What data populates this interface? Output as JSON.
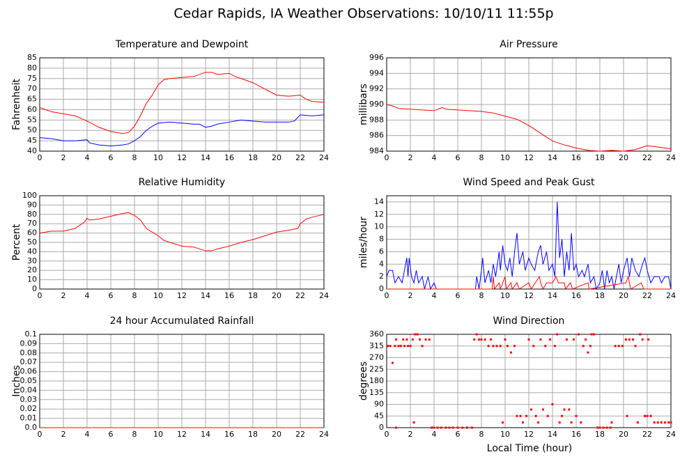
{
  "title": "Cedar Rapids, IA Weather Observations: 10/10/11 11:55p",
  "xlabel": "Local Time (hour)",
  "chart_data": [
    {
      "type": "line",
      "title": "Temperature and Dewpoint",
      "ylabel": "Fahrenheit",
      "grid": true,
      "xlim": [
        0,
        24
      ],
      "xticks": [
        0,
        2,
        4,
        6,
        8,
        10,
        12,
        14,
        16,
        18,
        20,
        22,
        24
      ],
      "ylim": [
        40,
        85
      ],
      "yticks": [
        40,
        45,
        50,
        55,
        60,
        65,
        70,
        75,
        80,
        85
      ],
      "series": [
        {
          "color": "#ff0000",
          "x": [
            0,
            1,
            2,
            3,
            4,
            5,
            6,
            7,
            7.5,
            8,
            8.5,
            9,
            9.5,
            10,
            10.5,
            11,
            12,
            13,
            14,
            14.5,
            15,
            16,
            16.5,
            17,
            18,
            19,
            20,
            21,
            22,
            22.5,
            23,
            24
          ],
          "values": [
            61,
            59,
            58,
            57,
            54.5,
            51.5,
            49.5,
            48.5,
            49,
            52,
            57,
            63,
            67,
            72,
            74.5,
            75,
            75.5,
            76,
            78,
            78,
            77,
            77.5,
            76,
            75,
            73,
            70,
            67,
            66.5,
            67,
            65,
            64,
            63.5
          ]
        },
        {
          "color": "#0000ff",
          "x": [
            0,
            1,
            2,
            3,
            4,
            4.2,
            5,
            6,
            7,
            7.5,
            8,
            8.5,
            9,
            9.5,
            10,
            11,
            12,
            13,
            13.5,
            14,
            14.5,
            15,
            16,
            17,
            18,
            19,
            20,
            21,
            21.5,
            22,
            23,
            24
          ],
          "values": [
            46.5,
            46,
            45,
            45,
            45.5,
            44,
            43,
            42.5,
            43,
            43.5,
            45,
            47,
            50,
            52,
            53.5,
            54,
            53.5,
            53,
            53,
            51.5,
            52,
            53,
            54,
            55,
            54.5,
            54,
            54,
            54,
            54.5,
            57.5,
            57,
            57.5
          ]
        }
      ]
    },
    {
      "type": "line",
      "title": "Air Pressure",
      "ylabel": "millibars",
      "grid": true,
      "xlim": [
        0,
        24
      ],
      "xticks": [
        0,
        2,
        4,
        6,
        8,
        10,
        12,
        14,
        16,
        18,
        20,
        22,
        24
      ],
      "ylim": [
        984,
        996
      ],
      "yticks": [
        984,
        986,
        988,
        990,
        992,
        994,
        996
      ],
      "series": [
        {
          "color": "#ff0000",
          "x": [
            0,
            0.5,
            1,
            2,
            3,
            4,
            4.7,
            5,
            6,
            7,
            8,
            9,
            10,
            11,
            12,
            13,
            14,
            15,
            16,
            17,
            18,
            19,
            20,
            21,
            22,
            23,
            24
          ],
          "values": [
            990,
            989.8,
            989.5,
            989.4,
            989.3,
            989.2,
            989.6,
            989.4,
            989.3,
            989.2,
            989.1,
            988.9,
            988.5,
            988.1,
            987.3,
            986.3,
            985.3,
            984.8,
            984.4,
            984.1,
            984,
            984.1,
            984,
            984.2,
            984.7,
            984.5,
            984.3
          ]
        }
      ]
    },
    {
      "type": "line",
      "title": "Relative Humidity",
      "ylabel": "Percent",
      "grid": true,
      "xlim": [
        0,
        24
      ],
      "xticks": [
        0,
        2,
        4,
        6,
        8,
        10,
        12,
        14,
        16,
        18,
        20,
        22,
        24
      ],
      "ylim": [
        0,
        100
      ],
      "yticks": [
        0,
        10,
        20,
        30,
        40,
        50,
        60,
        70,
        80,
        90,
        100
      ],
      "series": [
        {
          "color": "#ff0000",
          "x": [
            0,
            1,
            2,
            3,
            3.8,
            4,
            4.2,
            5,
            6,
            7,
            7.5,
            8,
            8.5,
            9,
            10,
            10.5,
            11,
            12,
            13,
            14,
            14.5,
            15,
            16,
            17,
            18,
            19,
            20,
            21,
            21.8,
            22,
            22.5,
            23,
            24
          ],
          "values": [
            60,
            62,
            62,
            65,
            72,
            76,
            74,
            75,
            78,
            81,
            82,
            79,
            74,
            65,
            57,
            52,
            50,
            46,
            45,
            41,
            41,
            43,
            46,
            50,
            53,
            57,
            61,
            63,
            65,
            70,
            75,
            77,
            80
          ]
        }
      ]
    },
    {
      "type": "line",
      "title": "Wind Speed and Peak Gust",
      "ylabel": "miles/hour",
      "grid": true,
      "xlim": [
        0,
        24
      ],
      "xticks": [
        0,
        2,
        4,
        6,
        8,
        10,
        12,
        14,
        16,
        18,
        20,
        22,
        24
      ],
      "ylim": [
        0,
        15
      ],
      "yticks": [
        0,
        2,
        4,
        6,
        8,
        10,
        12,
        14
      ],
      "series": [
        {
          "color": "#0000ff",
          "x": [
            0,
            0.2,
            0.5,
            0.7,
            1,
            1.3,
            1.6,
            1.7,
            1.8,
            1.9,
            2.1,
            2.3,
            2.5,
            2.7,
            3,
            3.2,
            3.5,
            3.7,
            4,
            4.2,
            7.5,
            7.6,
            7.8,
            8,
            8.1,
            8.3,
            8.6,
            8.8,
            9,
            9.2,
            9.5,
            9.6,
            9.8,
            10,
            10.2,
            10.4,
            10.6,
            10.8,
            11,
            11.2,
            11.5,
            11.7,
            12,
            12.2,
            12.5,
            12.8,
            13,
            13.2,
            13.5,
            13.7,
            14,
            14.2,
            14.4,
            14.6,
            14.8,
            15,
            15.2,
            15.4,
            15.6,
            15.8,
            16,
            16.2,
            16.5,
            16.7,
            17,
            17.2,
            17.5,
            17.7,
            18,
            18.2,
            18.4,
            18.6,
            18.8,
            19,
            19.2,
            19.6,
            19.8,
            20,
            20.3,
            20.5,
            20.7,
            21,
            21.3,
            21.6,
            21.8,
            22,
            22.3,
            22.6,
            23,
            23.2,
            23.5,
            23.8,
            24
          ],
          "values": [
            2,
            3,
            3,
            1,
            2,
            1,
            4,
            5,
            2,
            5,
            2,
            1,
            3,
            1,
            2,
            0,
            2,
            0,
            1,
            0,
            0,
            2,
            0,
            3,
            5,
            1,
            3,
            1,
            4,
            2,
            6,
            3,
            7,
            4,
            3,
            5,
            2,
            6,
            9,
            4,
            6,
            3,
            5,
            4,
            3,
            6,
            7,
            4,
            6,
            3,
            4,
            2,
            14,
            5,
            8,
            2,
            6,
            3,
            9,
            3,
            4,
            2,
            3,
            2,
            4,
            1,
            2,
            0,
            1,
            3,
            0,
            3,
            1,
            2,
            0,
            4,
            1,
            3,
            5,
            2,
            5,
            3,
            2,
            4,
            5,
            3,
            1,
            2,
            2,
            1,
            2,
            2,
            0
          ]
        },
        {
          "color": "#ff0000",
          "x": [
            0,
            8.9,
            9,
            9.1,
            9.5,
            9.6,
            10,
            10.1,
            10.5,
            10.6,
            11,
            11.2,
            12,
            12.2,
            12.9,
            13,
            13.2,
            13.5,
            14,
            14.3,
            14.5,
            15,
            15.1,
            15.5,
            15.7,
            17,
            17.1,
            20.2,
            20.4,
            20.6,
            21.5,
            21.7,
            24
          ],
          "values": [
            0,
            0,
            2,
            0,
            1,
            0,
            2,
            0,
            1,
            0,
            1,
            0,
            1,
            0,
            2,
            1,
            0,
            1,
            1,
            2,
            1,
            1,
            0,
            1,
            0,
            1,
            0,
            1,
            2,
            0,
            1,
            0,
            0
          ]
        }
      ]
    },
    {
      "type": "line",
      "title": "24 hour Accumulated Rainfall",
      "ylabel": "Inches",
      "grid": true,
      "xlim": [
        0,
        24
      ],
      "xticks": [
        0,
        2,
        4,
        6,
        8,
        10,
        12,
        14,
        16,
        18,
        20,
        22,
        24
      ],
      "ylim": [
        0,
        0.1
      ],
      "yticks": [
        {
          "value": 0,
          "label": "0.0"
        },
        0.01,
        0.02,
        0.03,
        0.04,
        0.05,
        0.06,
        0.07,
        0.08,
        0.09,
        0.1
      ],
      "series": [
        {
          "color": "#ff0000",
          "x": [
            0,
            24
          ],
          "values": [
            0,
            0
          ]
        }
      ]
    },
    {
      "type": "scatter",
      "title": "Wind Direction",
      "ylabel": "degrees",
      "grid": true,
      "xlim": [
        0,
        24
      ],
      "xticks": [
        0,
        2,
        4,
        6,
        8,
        10,
        12,
        14,
        16,
        18,
        20,
        22,
        24
      ],
      "ylim": [
        0,
        360
      ],
      "yticks": [
        0,
        45,
        90,
        135,
        180,
        225,
        270,
        315,
        360
      ],
      "series": [
        {
          "color": "#ff0000",
          "x": [
            0.1,
            0.3,
            0.5,
            0.7,
            0.8,
            1,
            1.2,
            1.4,
            1.5,
            1.7,
            1.8,
            2,
            2.2,
            2.4,
            2.6,
            2.8,
            3,
            3.3,
            3.6,
            0.8,
            2.3,
            3.8,
            4,
            4.3,
            4.6,
            5,
            5.3,
            5.6,
            6,
            6.4,
            6.8,
            7.2,
            7.4,
            7.6,
            7.8,
            8,
            8.3,
            8.6,
            8.8,
            9,
            9.3,
            9.6,
            9.8,
            10,
            10.2,
            10.5,
            10.8,
            11,
            11.3,
            11.5,
            11.8,
            12,
            12.2,
            12.4,
            12.6,
            12.8,
            13,
            13.2,
            13.4,
            13.6,
            13.8,
            14,
            14.2,
            14.4,
            14.6,
            14.8,
            15,
            15.2,
            15.4,
            15.6,
            15.8,
            16,
            16.2,
            16.4,
            16.6,
            16.8,
            17,
            17.2,
            17.3,
            17.5,
            17.8,
            18,
            18.3,
            18.6,
            18.9,
            19,
            19.3,
            19.6,
            19.9,
            20.2,
            20.3,
            20.5,
            20.8,
            21,
            21.2,
            21.4,
            21.6,
            21.8,
            22,
            22.1,
            22.3,
            22.6,
            22.9,
            23.2,
            23.5,
            23.8,
            24
          ],
          "values": [
            315,
            315,
            250,
            315,
            340,
            315,
            315,
            340,
            315,
            340,
            315,
            315,
            340,
            360,
            360,
            340,
            315,
            340,
            340,
            0,
            20,
            0,
            0,
            0,
            0,
            0,
            0,
            0,
            0,
            0,
            0,
            0,
            340,
            360,
            340,
            340,
            340,
            315,
            340,
            315,
            315,
            315,
            20,
            340,
            315,
            290,
            315,
            45,
            45,
            20,
            45,
            340,
            70,
            315,
            45,
            20,
            340,
            70,
            315,
            45,
            340,
            90,
            315,
            360,
            20,
            45,
            70,
            340,
            70,
            20,
            340,
            45,
            360,
            20,
            315,
            340,
            290,
            315,
            360,
            360,
            0,
            0,
            0,
            0,
            0,
            20,
            315,
            315,
            315,
            340,
            45,
            340,
            340,
            315,
            20,
            360,
            340,
            45,
            45,
            340,
            45,
            20,
            20,
            20,
            20,
            20,
            20
          ]
        }
      ]
    }
  ]
}
